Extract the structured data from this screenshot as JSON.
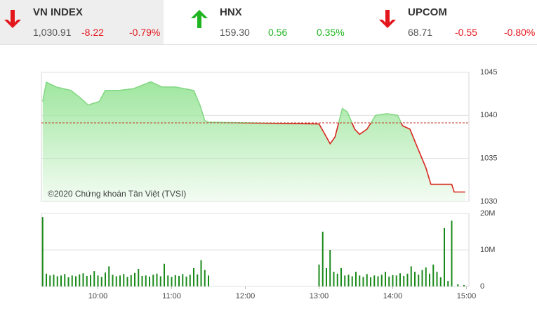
{
  "indices": [
    {
      "name": "VN INDEX",
      "value": "1,030.91",
      "change": "-8.22",
      "percent": "-0.79%",
      "direction": "down",
      "color": "#e3161c"
    },
    {
      "name": "HNX",
      "value": "159.30",
      "change": "0.56",
      "percent": "0.35%",
      "direction": "up",
      "color": "#1fb521"
    },
    {
      "name": "UPCOM",
      "value": "68.71",
      "change": "-0.55",
      "percent": "-0.80%",
      "direction": "down",
      "color": "#e3161c"
    }
  ],
  "chart_data": [
    {
      "type": "area",
      "annotation": "©2020 Chứng khoán Tân Việt (TVSI)",
      "x": [
        555,
        558,
        566,
        578,
        586,
        592,
        601,
        606,
        617,
        629,
        643,
        652,
        663,
        678,
        683,
        687,
        690,
        780,
        784,
        789,
        793,
        799,
        803,
        809,
        813,
        819,
        826,
        835,
        844,
        848,
        854,
        860,
        867,
        871,
        876,
        888,
        890,
        899
      ],
      "values": [
        1041.6,
        1043.85,
        1043.3,
        1042.9,
        1042.0,
        1041.2,
        1041.6,
        1042.9,
        1042.9,
        1043.1,
        1043.9,
        1043.3,
        1043.3,
        1042.9,
        1041.2,
        1039.4,
        1039.2,
        1039.0,
        1038.0,
        1036.7,
        1037.5,
        1040.8,
        1040.4,
        1038.4,
        1037.8,
        1038.4,
        1040.0,
        1040.2,
        1040.0,
        1038.8,
        1038.4,
        1036.3,
        1033.9,
        1032.0,
        1032.0,
        1032.0,
        1031.1,
        1031.1
      ],
      "reference": 1039.13,
      "xlim": [
        554,
        902
      ],
      "ylim": [
        1030,
        1045
      ],
      "yticks": [
        1030,
        1035,
        1040,
        1045
      ],
      "fill_color": "#9fe69f",
      "up_color": "#86d886",
      "down_color": "#d7261e",
      "reference_color": "#c0392b",
      "grid": true
    },
    {
      "type": "bar",
      "x": [
        555,
        558,
        561,
        564,
        567,
        570,
        573,
        576,
        579,
        582,
        585,
        588,
        591,
        594,
        597,
        600,
        603,
        606,
        609,
        612,
        615,
        618,
        621,
        624,
        627,
        630,
        633,
        636,
        639,
        642,
        645,
        648,
        651,
        654,
        657,
        660,
        663,
        666,
        669,
        672,
        675,
        678,
        681,
        684,
        687,
        690,
        780,
        783,
        786,
        789,
        792,
        795,
        798,
        801,
        804,
        807,
        810,
        813,
        816,
        819,
        822,
        825,
        828,
        831,
        834,
        837,
        840,
        843,
        846,
        849,
        852,
        855,
        858,
        861,
        864,
        867,
        870,
        873,
        876,
        879,
        882,
        885,
        888,
        893,
        898
      ],
      "values": [
        19,
        3.5,
        3,
        3.2,
        2.8,
        3,
        3.4,
        2.5,
        3,
        2.8,
        3.3,
        3.6,
        2.9,
        3.1,
        4.2,
        3,
        2.6,
        3.8,
        5.5,
        3.2,
        2.8,
        3,
        3.4,
        2.6,
        3.1,
        3.7,
        4.8,
        2.9,
        3,
        2.7,
        3.2,
        3.5,
        2.8,
        6.2,
        3,
        2.6,
        3.1,
        2.9,
        3.4,
        2.7,
        3.2,
        5,
        3.3,
        7.2,
        4.5,
        3,
        6,
        15,
        5,
        10,
        4,
        3.5,
        5,
        3,
        3.2,
        2.8,
        4,
        3,
        2.6,
        3.4,
        2.5,
        3,
        2.8,
        3.2,
        4,
        2.7,
        3.1,
        3,
        3.6,
        2.9,
        3.5,
        5.5,
        4,
        3.2,
        4.5,
        5.2,
        3.5,
        6,
        4,
        2.5,
        16,
        1.5,
        18,
        0.6,
        0.4
      ],
      "color": "#1a8a1a",
      "xlim": [
        554,
        902
      ],
      "ylim": [
        0,
        20
      ],
      "yticks": [
        0,
        {
          "value": 10,
          "label": "10M"
        },
        {
          "value": 20,
          "label": "20M"
        }
      ],
      "xticks": [
        {
          "value": 600,
          "label": "10:00"
        },
        {
          "value": 660,
          "label": "11:00"
        },
        {
          "value": 720,
          "label": "12:00"
        },
        {
          "value": 780,
          "label": "13:00"
        },
        {
          "value": 840,
          "label": "14:00"
        },
        {
          "value": 900,
          "label": "15:00"
        }
      ],
      "grid": true
    }
  ]
}
